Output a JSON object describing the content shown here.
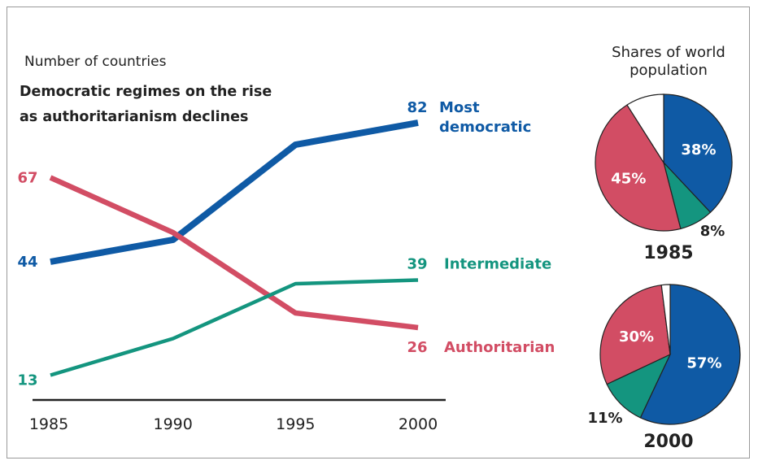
{
  "chart_data": [
    {
      "type": "line",
      "subtitle": "Number of countries",
      "title_lines": [
        "Democratic regimes on the rise",
        "as authoritarianism declines"
      ],
      "x": [
        1985,
        1990,
        1995,
        2000
      ],
      "x_tick_labels": [
        "1985",
        "1990",
        "1995",
        "2000"
      ],
      "series": [
        {
          "name": "Most democratic",
          "label_lines": [
            "Most",
            "democratic"
          ],
          "color": "#0f5aa5",
          "values": [
            44,
            50,
            76,
            82
          ],
          "start_label": "44",
          "end_label": "82"
        },
        {
          "name": "Authoritarian",
          "color": "#d24d64",
          "values": [
            67,
            52,
            30,
            26
          ],
          "start_label": "67",
          "end_label": "26"
        },
        {
          "name": "Intermediate",
          "color": "#14957f",
          "values": [
            13,
            23,
            38,
            39
          ],
          "start_label": "13",
          "end_label": "39"
        }
      ],
      "ylim": [
        0,
        90
      ],
      "grid": false,
      "legend": "inline-right"
    },
    {
      "type": "pie",
      "heading": "Shares of world population",
      "pies": [
        {
          "year_label": "1985",
          "slices": [
            {
              "value": 38,
              "label": "38%",
              "color": "#0f5aa5"
            },
            {
              "value": 8,
              "label": "8%",
              "color": "#14957f"
            },
            {
              "value": 45,
              "label": "45%",
              "color": "#d24d64"
            },
            {
              "value": 9,
              "label": "",
              "color": "#ffffff"
            }
          ]
        },
        {
          "year_label": "2000",
          "slices": [
            {
              "value": 57,
              "label": "57%",
              "color": "#0f5aa5"
            },
            {
              "value": 11,
              "label": "11%",
              "color": "#14957f"
            },
            {
              "value": 30,
              "label": "30%",
              "color": "#d24d64"
            },
            {
              "value": 2,
              "label": "",
              "color": "#ffffff"
            }
          ]
        }
      ]
    }
  ]
}
